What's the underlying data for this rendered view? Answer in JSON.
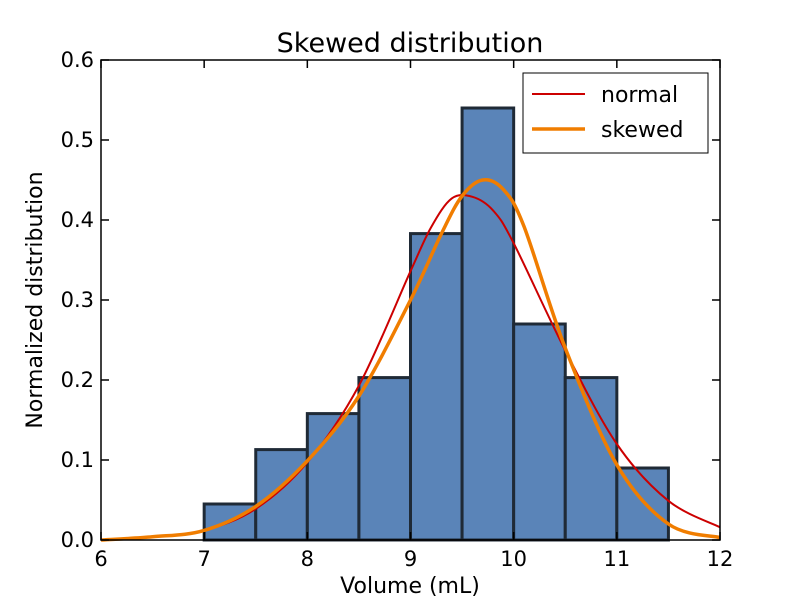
{
  "chart_data": {
    "type": "bar",
    "title": "Skewed distribution",
    "xlabel": "Volume (mL)",
    "ylabel": "Normalized distribution",
    "xlim": [
      6,
      12
    ],
    "ylim": [
      0,
      0.6
    ],
    "x_ticks": [
      "6",
      "7",
      "8",
      "9",
      "10",
      "11",
      "12"
    ],
    "y_ticks": [
      "0.0",
      "0.1",
      "0.2",
      "0.3",
      "0.4",
      "0.5",
      "0.6"
    ],
    "grid": false,
    "legend_position": "top-right",
    "histogram": {
      "bin_edges": [
        7.0,
        7.5,
        8.0,
        8.5,
        9.0,
        9.5,
        10.0,
        10.5,
        11.0,
        11.5
      ],
      "values": [
        0.045,
        0.113,
        0.158,
        0.203,
        0.383,
        0.54,
        0.27,
        0.203,
        0.09
      ],
      "color": "#5a84b8",
      "edge_color": "#1f2a36"
    },
    "series": [
      {
        "name": "normal",
        "color": "#cc0000",
        "x": [
          6.0,
          6.5,
          7.0,
          7.5,
          8.0,
          8.5,
          9.0,
          9.2,
          9.4,
          9.6,
          9.8,
          10.0,
          10.5,
          11.0,
          11.5,
          12.0
        ],
        "y": [
          0.0,
          0.004,
          0.012,
          0.039,
          0.097,
          0.193,
          0.336,
          0.391,
          0.427,
          0.429,
          0.412,
          0.371,
          0.237,
          0.12,
          0.049,
          0.016
        ]
      },
      {
        "name": "skewed",
        "color": "#f07d00",
        "x": [
          6.0,
          6.5,
          7.0,
          7.5,
          8.0,
          8.5,
          9.0,
          9.3,
          9.5,
          9.7,
          9.9,
          10.1,
          10.5,
          11.0,
          11.5,
          12.0
        ],
        "y": [
          0.0,
          0.004,
          0.012,
          0.042,
          0.099,
          0.18,
          0.3,
          0.383,
          0.43,
          0.45,
          0.438,
          0.392,
          0.24,
          0.094,
          0.02,
          0.003
        ]
      }
    ]
  }
}
